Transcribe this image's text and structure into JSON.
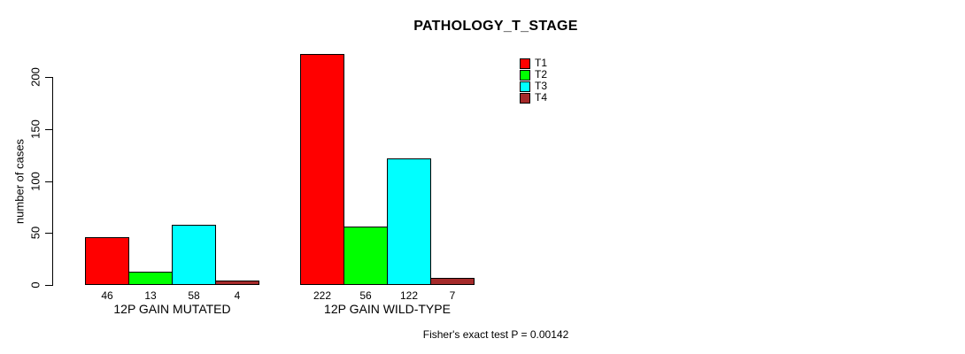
{
  "chart_data": {
    "type": "bar",
    "title": "PATHOLOGY_T_STAGE",
    "ylabel": "number of cases",
    "xlabel": "",
    "categories": [
      "12P GAIN MUTATED",
      "12P GAIN WILD-TYPE"
    ],
    "series": [
      {
        "name": "T1",
        "color": "#FF0000",
        "values": [
          46,
          222
        ]
      },
      {
        "name": "T2",
        "color": "#00FF00",
        "values": [
          13,
          56
        ]
      },
      {
        "name": "T3",
        "color": "#00FFFF",
        "values": [
          58,
          122
        ]
      },
      {
        "name": "T4",
        "color": "#A52A2A",
        "values": [
          4,
          7
        ]
      }
    ],
    "yticks": [
      0,
      50,
      100,
      150,
      200
    ],
    "ylim": [
      0,
      230
    ],
    "grid": false,
    "bar_value_labels": true,
    "legend_position": "top-right-of-plot",
    "annotation": "Fisher's exact test P = 0.00142"
  }
}
